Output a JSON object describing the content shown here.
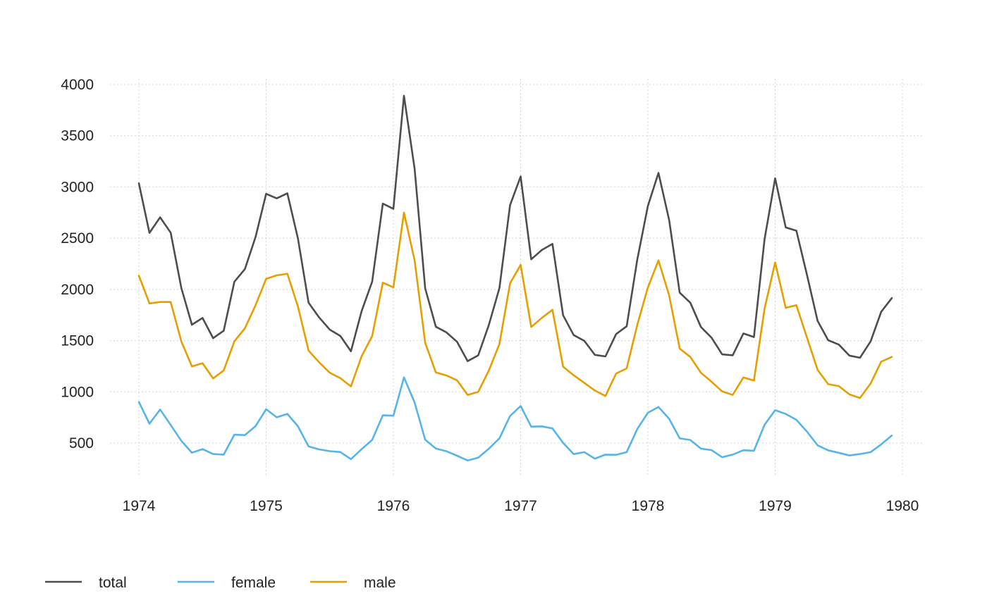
{
  "chart_data": {
    "type": "line",
    "title": "",
    "xlabel": "",
    "ylabel": "",
    "xlim": [
      1974,
      1980
    ],
    "ylim": [
      150,
      4100
    ],
    "x_ticks": [
      "1974",
      "1975",
      "1976",
      "1977",
      "1978",
      "1979",
      "1980"
    ],
    "y_ticks": [
      "500",
      "1000",
      "1500",
      "2000",
      "2500",
      "3000",
      "3500",
      "4000"
    ],
    "grid": true,
    "legend_position": "bottom-left",
    "x_start": "1974-01",
    "frequency": "monthly",
    "series": [
      {
        "name": "total",
        "color": "#4d4d4d",
        "values": [
          3035,
          2552,
          2704,
          2554,
          2014,
          1655,
          1721,
          1524,
          1596,
          2074,
          2199,
          2512,
          2933,
          2889,
          2938,
          2497,
          1870,
          1726,
          1607,
          1545,
          1396,
          1787,
          2076,
          2837,
          2787,
          3891,
          3179,
          2011,
          1636,
          1580,
          1489,
          1300,
          1356,
          1653,
          2013,
          2823,
          3102,
          2294,
          2385,
          2444,
          1748,
          1554,
          1498,
          1361,
          1346,
          1564,
          1640,
          2293,
          2815,
          3137,
          2679,
          1969,
          1870,
          1633,
          1529,
          1366,
          1357,
          1570,
          1535,
          2491,
          3084,
          2605,
          2573,
          2143,
          1693,
          1504,
          1461,
          1354,
          1333,
          1492,
          1781,
          1915
        ]
      },
      {
        "name": "female",
        "color": "#56b4e9",
        "values": [
          901,
          689,
          827,
          677,
          522,
          406,
          441,
          393,
          387,
          582,
          578,
          666,
          830,
          752,
          785,
          664,
          467,
          438,
          421,
          412,
          343,
          440,
          531,
          771,
          767,
          1141,
          896,
          532,
          447,
          420,
          376,
          330,
          357,
          445,
          546,
          764,
          862,
          660,
          663,
          643,
          502,
          392,
          411,
          348,
          387,
          385,
          411,
          638,
          796,
          853,
          737,
          546,
          530,
          446,
          431,
          362,
          387,
          430,
          425,
          679,
          821,
          785,
          727,
          612,
          478,
          429,
          405,
          379,
          393,
          411,
          487,
          574
        ]
      },
      {
        "name": "male",
        "color": "#e69f00",
        "values": [
          2134,
          1863,
          1877,
          1877,
          1492,
          1249,
          1280,
          1131,
          1209,
          1492,
          1621,
          1846,
          2103,
          2137,
          2153,
          1833,
          1403,
          1288,
          1186,
          1133,
          1053,
          1347,
          1545,
          2066,
          2020,
          2750,
          2283,
          1479,
          1189,
          1160,
          1113,
          970,
          999,
          1208,
          1467,
          2059,
          2240,
          1634,
          1722,
          1801,
          1246,
          1162,
          1087,
          1013,
          959,
          1179,
          1229,
          1655,
          2019,
          2284,
          1942,
          1423,
          1340,
          1187,
          1098,
          1004,
          970,
          1140,
          1110,
          1812,
          2263,
          1820,
          1846,
          1531,
          1215,
          1075,
          1056,
          975,
          940,
          1081,
          1294,
          1341
        ]
      }
    ]
  }
}
